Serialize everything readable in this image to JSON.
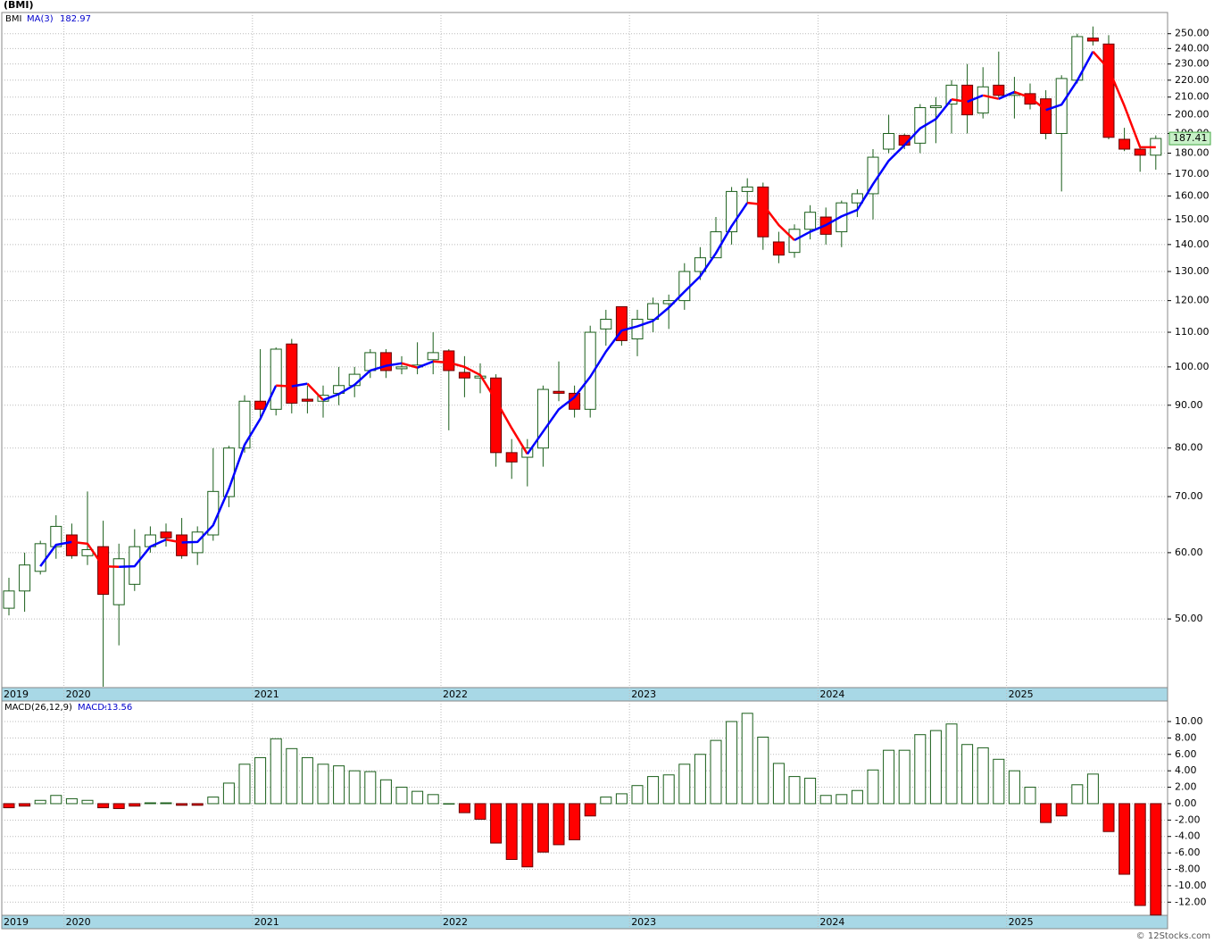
{
  "title": "(BMI)",
  "footer": "© 12Stocks.com",
  "chart_data": [
    {
      "type": "candlestick",
      "name": "BMI",
      "log_scale": true,
      "grid": true,
      "categories": [
        "2019",
        null,
        null,
        null,
        "2020",
        null,
        null,
        null,
        null,
        null,
        null,
        null,
        null,
        null,
        null,
        null,
        "2021",
        null,
        null,
        null,
        null,
        null,
        null,
        null,
        null,
        null,
        null,
        null,
        "2022",
        null,
        null,
        null,
        null,
        null,
        null,
        null,
        null,
        null,
        null,
        null,
        "2023",
        null,
        null,
        null,
        null,
        null,
        null,
        null,
        null,
        null,
        null,
        null,
        "2024",
        null,
        null,
        null,
        null,
        null,
        null,
        null,
        null,
        null,
        null,
        null,
        "2025",
        null,
        null,
        null,
        null,
        null,
        null,
        null,
        null,
        null
      ],
      "open": [
        51.5,
        54,
        57,
        61,
        63,
        59.5,
        61,
        52,
        55,
        61,
        63.5,
        63,
        60,
        63,
        70,
        80,
        91,
        89,
        106.5,
        91.5,
        91,
        93,
        95,
        99,
        104,
        99.5,
        100,
        102,
        104.5,
        98.5,
        97,
        97,
        79,
        78,
        80,
        93.5,
        93,
        89,
        111,
        118,
        108,
        114,
        119,
        120,
        130,
        135,
        145,
        162,
        164,
        141,
        137,
        146,
        151,
        145,
        157,
        161,
        182,
        189,
        185,
        204,
        206,
        217,
        201,
        217,
        211,
        212,
        209,
        190,
        220,
        247,
        243,
        187,
        182,
        179
      ],
      "high": [
        56,
        60,
        62,
        66.5,
        65,
        71,
        65.5,
        61.5,
        64,
        64.5,
        65,
        66,
        64.5,
        80,
        80.5,
        92.5,
        105,
        105.5,
        108,
        95,
        95,
        100,
        100,
        105,
        105,
        103,
        107,
        110,
        105,
        103,
        101,
        98,
        82,
        82,
        95,
        101.5,
        95,
        112,
        117,
        118,
        117,
        121,
        122,
        133,
        139,
        151,
        164,
        168,
        166,
        145,
        148,
        156,
        155,
        158,
        163,
        182,
        200,
        190,
        206,
        210,
        220,
        230,
        228,
        238,
        222,
        218,
        214,
        223,
        250,
        255,
        249,
        193,
        184,
        189
      ],
      "low": [
        50.5,
        51,
        56.5,
        59,
        59,
        58,
        41.5,
        46.5,
        54,
        60,
        61,
        59,
        58,
        62,
        68,
        79,
        87,
        87.5,
        88,
        88,
        87,
        90,
        92,
        97,
        97,
        98,
        98,
        98,
        84,
        92,
        93,
        76,
        73.5,
        72,
        76,
        91,
        87,
        87,
        106,
        106,
        103,
        110,
        111,
        117,
        127,
        136,
        140,
        157,
        138,
        133,
        135,
        142,
        140,
        139,
        151,
        150,
        180,
        182,
        180,
        185,
        190,
        190,
        198,
        210,
        198,
        203,
        187,
        162,
        218,
        242,
        187,
        181,
        171,
        172
      ],
      "close": [
        54,
        58,
        61.5,
        64.5,
        59.5,
        60.5,
        53.5,
        59,
        61,
        63,
        62.5,
        59.5,
        63.5,
        71,
        80,
        91,
        89,
        105,
        90.5,
        91,
        92.5,
        95,
        98,
        104,
        99,
        100,
        100.5,
        104,
        99,
        97,
        97.5,
        79,
        77,
        80,
        94,
        93,
        89,
        110,
        114,
        107.5,
        114,
        119,
        120,
        130,
        135,
        145,
        162,
        164,
        143,
        136,
        146,
        153,
        144,
        157,
        161,
        178,
        190,
        184,
        204,
        205,
        217,
        200,
        216,
        211,
        212,
        206,
        190,
        221,
        248,
        245,
        188,
        182,
        179,
        187.41
      ],
      "ma": {
        "name": "MA(3)",
        "values": [
          null,
          null,
          57.8,
          61.3,
          61.8,
          61.5,
          57.8,
          57.7,
          57.8,
          61,
          62.2,
          61.7,
          61.8,
          64.7,
          71.5,
          80.7,
          86.7,
          95,
          94.8,
          95.5,
          91.3,
          92.8,
          95.2,
          99,
          100.3,
          101,
          99.8,
          101.5,
          101.2,
          100,
          97.8,
          91.2,
          84.5,
          78.7,
          83.7,
          89,
          92,
          97.3,
          104.3,
          110.5,
          111.8,
          113.5,
          117.7,
          123,
          128.3,
          136.7,
          147.3,
          157,
          156.3,
          147.7,
          141.7,
          145,
          147.7,
          151.3,
          154,
          165.3,
          176.3,
          184,
          192.7,
          197.7,
          208.7,
          207.3,
          211,
          209,
          213,
          209.7,
          202.7,
          205.7,
          219.7,
          238,
          227,
          205,
          183,
          182.97
        ]
      },
      "colors": {
        "up": "#ffffff",
        "down": "#ff0000",
        "border": "#1a5e1a",
        "ma_up": "#0000ff",
        "ma_down": "#ff0000",
        "name": "#006400",
        "last_box": "#c8f0c8"
      },
      "ylim": [
        41.4,
        265
      ],
      "yticks": [
        {
          "value": 50,
          "label": "50.00"
        },
        {
          "value": 60,
          "label": "60.00"
        },
        {
          "value": 70,
          "label": "70.00"
        },
        {
          "value": 80,
          "label": "80.00"
        },
        {
          "value": 90,
          "label": "90.00"
        },
        {
          "value": 100,
          "label": "100.00"
        },
        {
          "value": 110,
          "label": "110.00"
        },
        {
          "value": 120,
          "label": "120.00"
        },
        {
          "value": 130,
          "label": "130.00"
        },
        {
          "value": 140,
          "label": "140.00"
        },
        {
          "value": 150,
          "label": "150.00"
        },
        {
          "value": 160,
          "label": "160.00"
        },
        {
          "value": 170,
          "label": "170.00"
        },
        {
          "value": 180,
          "label": "180.00"
        },
        {
          "value": 190,
          "label": "190.00"
        },
        {
          "value": 200,
          "label": "200.00"
        },
        {
          "value": 210,
          "label": "210.00"
        },
        {
          "value": 220,
          "label": "220.00"
        },
        {
          "value": 230,
          "label": "230.00"
        },
        {
          "value": 240,
          "label": "240.00"
        },
        {
          "value": 250,
          "label": "250.00"
        }
      ]
    },
    {
      "type": "bar",
      "name": "MACD(26,12,9)",
      "value_name": "MACD:",
      "values": [
        -0.5,
        -0.3,
        0.4,
        1.0,
        0.6,
        0.4,
        -0.5,
        -0.6,
        -0.3,
        0.1,
        0.1,
        -0.2,
        -0.2,
        0.8,
        2.5,
        4.8,
        5.6,
        7.9,
        6.7,
        5.6,
        4.8,
        4.6,
        4.0,
        3.9,
        2.9,
        2.0,
        1.5,
        1.1,
        0.0,
        -1.1,
        -1.9,
        -4.8,
        -6.8,
        -7.7,
        -5.9,
        -5.0,
        -4.4,
        -1.5,
        0.8,
        1.2,
        2.2,
        3.3,
        3.5,
        4.8,
        6.0,
        7.7,
        10.0,
        11.0,
        8.1,
        4.9,
        3.3,
        3.1,
        1.0,
        1.1,
        1.6,
        4.1,
        6.5,
        6.5,
        8.4,
        8.9,
        9.7,
        7.2,
        6.8,
        5.4,
        4.0,
        2.0,
        -2.3,
        -1.5,
        2.3,
        3.6,
        -3.4,
        -8.6,
        -12.4,
        -13.56
      ],
      "colors": {
        "up": "#ffffff",
        "down": "#ff0000",
        "border": "#1a5e1a"
      },
      "ylim": [
        -13.6,
        12.5
      ],
      "yticks": [
        {
          "value": 10,
          "label": "10.00"
        },
        {
          "value": 8,
          "label": "8.00"
        },
        {
          "value": 6,
          "label": "6.00"
        },
        {
          "value": 4,
          "label": "4.00"
        },
        {
          "value": 2,
          "label": "2.00"
        },
        {
          "value": 0,
          "label": "0.00"
        },
        {
          "value": -2,
          "label": "-2.00"
        },
        {
          "value": -4,
          "label": "-4.00"
        },
        {
          "value": -6,
          "label": "-6.00"
        },
        {
          "value": -8,
          "label": "-8.00"
        },
        {
          "value": -10,
          "label": "-10.00"
        },
        {
          "value": -12,
          "label": "-12.00"
        }
      ]
    }
  ]
}
